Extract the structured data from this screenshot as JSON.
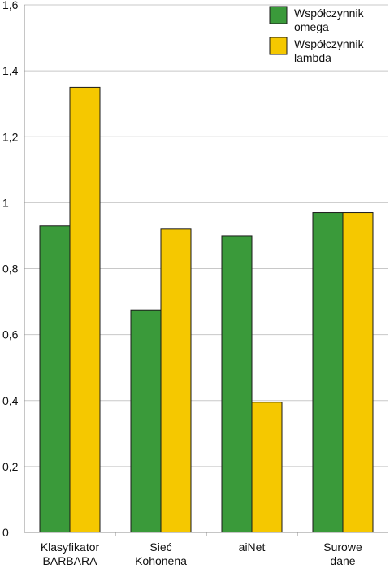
{
  "chart_data": {
    "type": "bar",
    "categories": [
      [
        "Klasyfikator",
        "BARBARA"
      ],
      [
        "Sieć",
        "Kohonena"
      ],
      [
        "aiNet"
      ],
      [
        "Surowe",
        "dane"
      ]
    ],
    "series": [
      {
        "name": "Współczynnik omega",
        "legend_lines": [
          "Współczynnik",
          "omega"
        ],
        "color": "#3a9a3a",
        "values": [
          0.93,
          0.675,
          0.9,
          0.97
        ]
      },
      {
        "name": "Współczynnik lambda",
        "legend_lines": [
          "Współczynnik",
          "lambda"
        ],
        "color": "#f5c800",
        "values": [
          1.35,
          0.92,
          0.395,
          0.97
        ]
      }
    ],
    "ylim": [
      0,
      1.6
    ],
    "yticks": [
      0,
      0.2,
      0.4,
      0.6,
      0.8,
      1,
      1.2,
      1.4,
      1.6
    ],
    "ytick_labels": [
      "0",
      "0,2",
      "0,4",
      "0,6",
      "0,8",
      "1",
      "1,2",
      "1,4",
      "1,6"
    ],
    "grid": true,
    "legend_position": "top-right",
    "title": "",
    "xlabel": "",
    "ylabel": ""
  }
}
